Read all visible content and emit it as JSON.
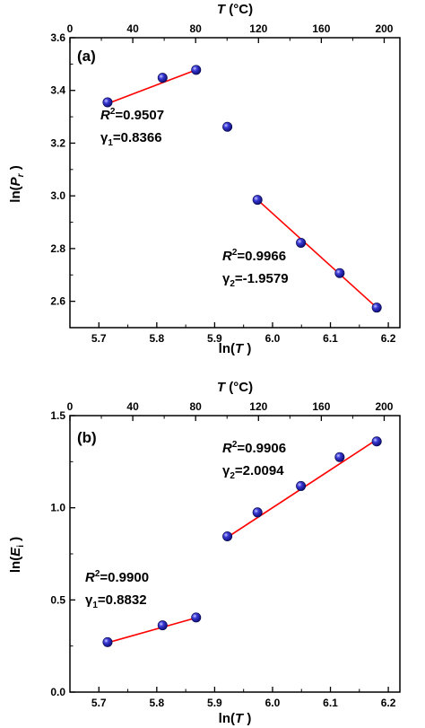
{
  "chart_data": [
    {
      "type": "scatter",
      "panel_label": "(a)",
      "xlabel": "ln(T )",
      "ylabel": "ln(P r )",
      "top_xlabel": "T (°C)",
      "xlim": [
        5.65,
        6.22
      ],
      "ylim": [
        2.5,
        3.6
      ],
      "top_xlim_celsius": [
        0,
        210
      ],
      "x_ticks": [
        "5.7",
        "5.8",
        "5.9",
        "6.0",
        "6.1",
        "6.2"
      ],
      "y_ticks": [
        "2.6",
        "2.8",
        "3.0",
        "3.2",
        "3.4",
        "3.6"
      ],
      "top_ticks": [
        "0",
        "40",
        "80",
        "120",
        "160",
        "200"
      ],
      "marker_color": "#1a1aa8",
      "fit_color": "#ff0000",
      "points": [
        {
          "x": 5.715,
          "y": 3.355
        },
        {
          "x": 5.81,
          "y": 3.448
        },
        {
          "x": 5.868,
          "y": 3.478
        },
        {
          "x": 5.922,
          "y": 3.262
        },
        {
          "x": 5.974,
          "y": 2.985
        },
        {
          "x": 6.049,
          "y": 2.822
        },
        {
          "x": 6.116,
          "y": 2.707
        },
        {
          "x": 6.18,
          "y": 2.576
        }
      ],
      "fits": [
        {
          "x": [
            5.715,
            5.868
          ],
          "y": [
            3.35,
            3.478
          ]
        },
        {
          "x": [
            5.974,
            6.18
          ],
          "y": [
            2.985,
            2.576
          ]
        }
      ],
      "annotations": [
        {
          "r2_label": "R",
          "r2_sup": "2",
          "r2_value": "=0.9507",
          "gamma_label": "γ",
          "gamma_sub": "1",
          "gamma_value": "=0.8366"
        },
        {
          "r2_label": "R",
          "r2_sup": "2",
          "r2_value": "=0.9966",
          "gamma_label": "γ",
          "gamma_sub": "2",
          "gamma_value": "=-1.9579"
        }
      ]
    },
    {
      "type": "scatter",
      "panel_label": "(b)",
      "xlabel": "ln(T )",
      "ylabel": "ln(E i )",
      "top_xlabel": "T (°C)",
      "xlim": [
        5.65,
        6.22
      ],
      "ylim": [
        0.0,
        1.5
      ],
      "top_xlim_celsius": [
        0,
        210
      ],
      "x_ticks": [
        "5.7",
        "5.8",
        "5.9",
        "6.0",
        "6.1",
        "6.2"
      ],
      "y_ticks": [
        "0.0",
        "0.5",
        "1.0",
        "1.5"
      ],
      "top_ticks": [
        "0",
        "40",
        "80",
        "120",
        "160",
        "200"
      ],
      "marker_color": "#1a1aa8",
      "fit_color": "#ff0000",
      "points": [
        {
          "x": 5.715,
          "y": 0.271
        },
        {
          "x": 5.81,
          "y": 0.362
        },
        {
          "x": 5.868,
          "y": 0.405
        },
        {
          "x": 5.922,
          "y": 0.845
        },
        {
          "x": 5.974,
          "y": 0.975
        },
        {
          "x": 6.049,
          "y": 1.118
        },
        {
          "x": 6.116,
          "y": 1.275
        },
        {
          "x": 6.18,
          "y": 1.36
        }
      ],
      "fits": [
        {
          "x": [
            5.715,
            5.868
          ],
          "y": [
            0.268,
            0.403
          ]
        },
        {
          "x": [
            5.922,
            6.18
          ],
          "y": [
            0.84,
            1.37
          ]
        }
      ],
      "annotations": [
        {
          "r2_label": "R",
          "r2_sup": "2",
          "r2_value": "=0.9906",
          "gamma_label": "γ",
          "gamma_sub": "2",
          "gamma_value": "=2.0094"
        },
        {
          "r2_label": "R",
          "r2_sup": "2",
          "r2_value": "=0.9900",
          "gamma_label": "γ",
          "gamma_sub": "1",
          "gamma_value": "=0.8832"
        }
      ]
    }
  ]
}
